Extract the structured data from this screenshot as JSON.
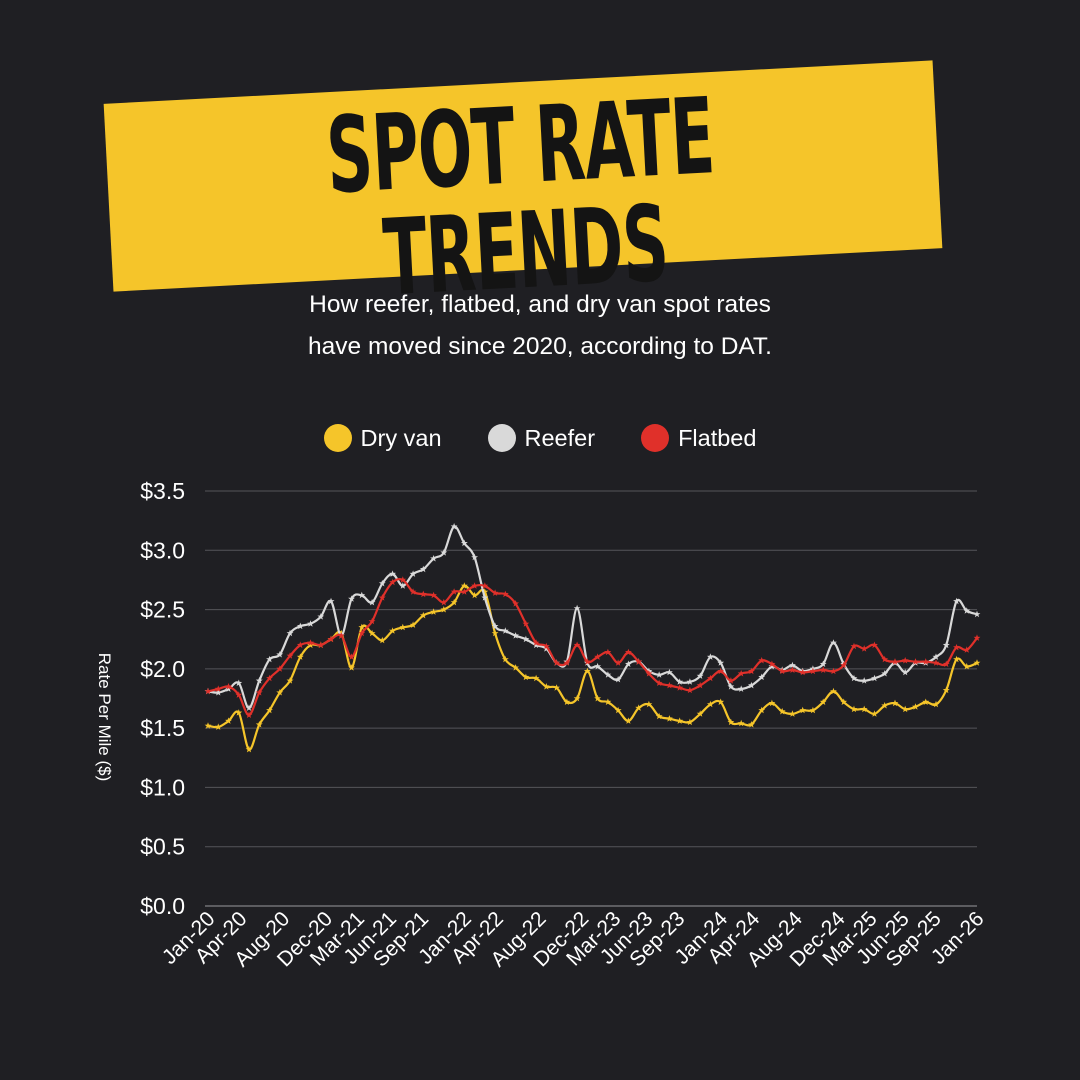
{
  "title": "SPOT RATE TRENDS",
  "subtitle": [
    "How reefer, flatbed, and dry van spot rates",
    "have moved since 2020, according to DAT."
  ],
  "colors": {
    "background": "#1f1f23",
    "banner": "#f5c52a",
    "dry_van": "#f5c52a",
    "reefer": "#d9d9d9",
    "flatbed": "#e0302a",
    "grid": "#55555a"
  },
  "chart_data": {
    "type": "line",
    "ylabel": "Rate Per Mile ($)",
    "ylim": [
      0,
      3.5
    ],
    "yticks": [
      "$0.0",
      "$0.5",
      "$1.0",
      "$1.5",
      "$2.0",
      "$2.5",
      "$3.0",
      "$3.5"
    ],
    "grid": true,
    "legend_position": "top-center",
    "marker": "star",
    "x_tick_labels": [
      "Jan-20",
      "Apr-20",
      "Aug-20",
      "Dec-20",
      "Mar-21",
      "Jun-21",
      "Sep-21",
      "Jan-22",
      "Apr-22",
      "Aug-22",
      "Dec-22",
      "Mar-23",
      "Jun-23",
      "Sep-23",
      "Jan-24",
      "Apr-24",
      "Aug-24",
      "Dec-24",
      "Mar-25",
      "Jun-25",
      "Sep-25",
      "Jan-26"
    ],
    "x_start": "2020-01",
    "x_end": "2026-01",
    "series": [
      {
        "name": "Dry van",
        "color": "#f5c52a",
        "values": [
          1.52,
          1.51,
          1.56,
          1.63,
          1.32,
          1.53,
          1.65,
          1.8,
          1.9,
          2.1,
          2.2,
          2.2,
          2.25,
          2.3,
          2.01,
          2.35,
          2.3,
          2.24,
          2.32,
          2.35,
          2.37,
          2.45,
          2.48,
          2.5,
          2.56,
          2.7,
          2.62,
          2.65,
          2.3,
          2.08,
          2.01,
          1.93,
          1.92,
          1.85,
          1.84,
          1.72,
          1.75,
          1.98,
          1.75,
          1.72,
          1.65,
          1.56,
          1.67,
          1.7,
          1.6,
          1.58,
          1.56,
          1.55,
          1.62,
          1.7,
          1.72,
          1.55,
          1.54,
          1.53,
          1.65,
          1.71,
          1.64,
          1.62,
          1.65,
          1.65,
          1.72,
          1.81,
          1.72,
          1.66,
          1.66,
          1.62,
          1.69,
          1.71,
          1.66,
          1.68,
          1.72,
          1.7,
          1.82,
          2.08,
          2.02,
          2.05
        ]
      },
      {
        "name": "Reefer",
        "color": "#d9d9d9",
        "values": [
          1.81,
          1.8,
          1.83,
          1.88,
          1.67,
          1.9,
          2.08,
          2.12,
          2.3,
          2.36,
          2.38,
          2.44,
          2.57,
          2.28,
          2.59,
          2.62,
          2.56,
          2.72,
          2.8,
          2.7,
          2.8,
          2.84,
          2.93,
          2.98,
          3.2,
          3.06,
          2.94,
          2.6,
          2.36,
          2.32,
          2.28,
          2.25,
          2.2,
          2.17,
          2.05,
          2.06,
          2.51,
          2.05,
          2.02,
          1.95,
          1.91,
          2.04,
          2.06,
          1.98,
          1.95,
          1.97,
          1.89,
          1.89,
          1.94,
          2.1,
          2.05,
          1.85,
          1.83,
          1.86,
          1.93,
          2.02,
          1.99,
          2.03,
          1.98,
          2.0,
          2.04,
          2.22,
          2.04,
          1.92,
          1.9,
          1.92,
          1.96,
          2.05,
          1.97,
          2.05,
          2.05,
          2.1,
          2.2,
          2.57,
          2.49,
          2.46
        ]
      },
      {
        "name": "Flatbed",
        "color": "#e0302a",
        "values": [
          1.81,
          1.83,
          1.85,
          1.78,
          1.61,
          1.8,
          1.92,
          2.0,
          2.11,
          2.2,
          2.22,
          2.2,
          2.25,
          2.28,
          2.1,
          2.3,
          2.4,
          2.6,
          2.73,
          2.75,
          2.65,
          2.63,
          2.62,
          2.56,
          2.65,
          2.65,
          2.7,
          2.7,
          2.64,
          2.63,
          2.55,
          2.38,
          2.22,
          2.19,
          2.05,
          2.05,
          2.2,
          2.06,
          2.1,
          2.14,
          2.05,
          2.14,
          2.06,
          1.96,
          1.88,
          1.86,
          1.84,
          1.82,
          1.86,
          1.92,
          1.98,
          1.9,
          1.96,
          1.98,
          2.07,
          2.04,
          1.98,
          1.99,
          1.97,
          1.98,
          1.99,
          1.98,
          2.03,
          2.19,
          2.17,
          2.2,
          2.08,
          2.06,
          2.07,
          2.06,
          2.06,
          2.05,
          2.04,
          2.18,
          2.16,
          2.26
        ]
      }
    ]
  }
}
